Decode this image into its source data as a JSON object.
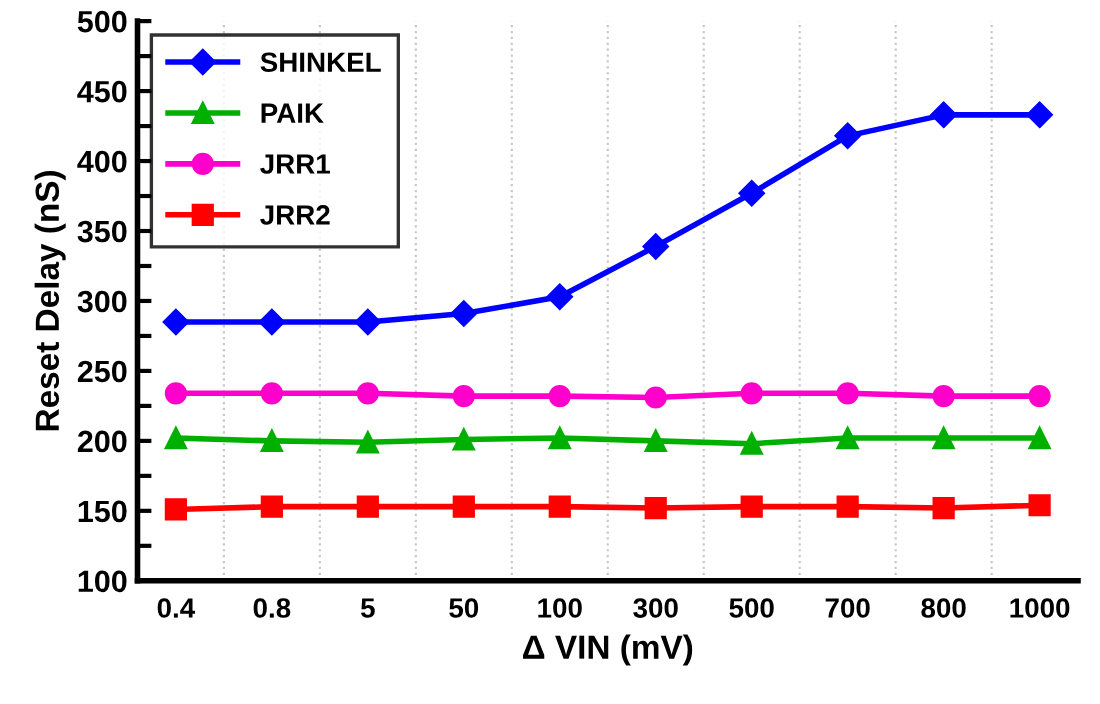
{
  "chart_data": {
    "type": "line",
    "xlabel": "Δ VIN (mV)",
    "ylabel": "Reset Delay (nS)",
    "categories": [
      "0.4",
      "0.8",
      "5",
      "50",
      "100",
      "300",
      "500",
      "700",
      "800",
      "1000"
    ],
    "series": [
      {
        "name": "SHINKEL",
        "color": "#0000ff",
        "marker": "diamond",
        "values": [
          285,
          285,
          285,
          291,
          303,
          339,
          377,
          418,
          433,
          433
        ]
      },
      {
        "name": "PAIK",
        "color": "#00b000",
        "marker": "triangle",
        "values": [
          202,
          200,
          199,
          201,
          202,
          200,
          198,
          202,
          202,
          202
        ]
      },
      {
        "name": "JRR1",
        "color": "#ff00cc",
        "marker": "circle",
        "values": [
          234,
          234,
          234,
          232,
          232,
          231,
          234,
          234,
          232,
          232
        ]
      },
      {
        "name": "JRR2",
        "color": "#ff0000",
        "marker": "square",
        "values": [
          151,
          153,
          153,
          153,
          153,
          152,
          153,
          153,
          152,
          154
        ]
      }
    ],
    "ylim": [
      100,
      500
    ],
    "yticks": [
      100,
      {
        "value": 125,
        "label": null
      },
      150,
      {
        "value": 175,
        "label": null
      },
      200,
      {
        "value": 225,
        "label": null
      },
      250,
      {
        "value": 275,
        "label": null
      },
      300,
      {
        "value": 325,
        "label": null
      },
      350,
      {
        "value": 375,
        "label": null
      },
      400,
      {
        "value": 425,
        "label": null
      },
      450,
      {
        "value": 475,
        "label": null
      },
      500
    ],
    "grid": "x",
    "legend": "top left",
    "line_style": "solid"
  }
}
